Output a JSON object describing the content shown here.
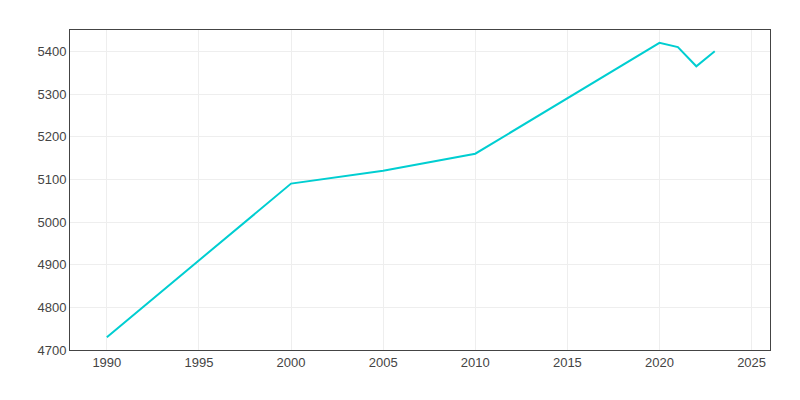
{
  "chart_data": {
    "type": "line",
    "x": [
      1990,
      2000,
      2005,
      2010,
      2020,
      2021,
      2022,
      2023
    ],
    "values": [
      4730,
      5090,
      5120,
      5160,
      5420,
      5410,
      5365,
      5400
    ],
    "color": "#00CED1",
    "xlim": [
      1988,
      2026
    ],
    "ylim": [
      4700,
      5450
    ],
    "xticks": [
      1990,
      1995,
      2000,
      2005,
      2010,
      2015,
      2020,
      2025
    ],
    "yticks": [
      4700,
      4800,
      4900,
      5000,
      5100,
      5200,
      5300,
      5400
    ],
    "grid": true
  }
}
